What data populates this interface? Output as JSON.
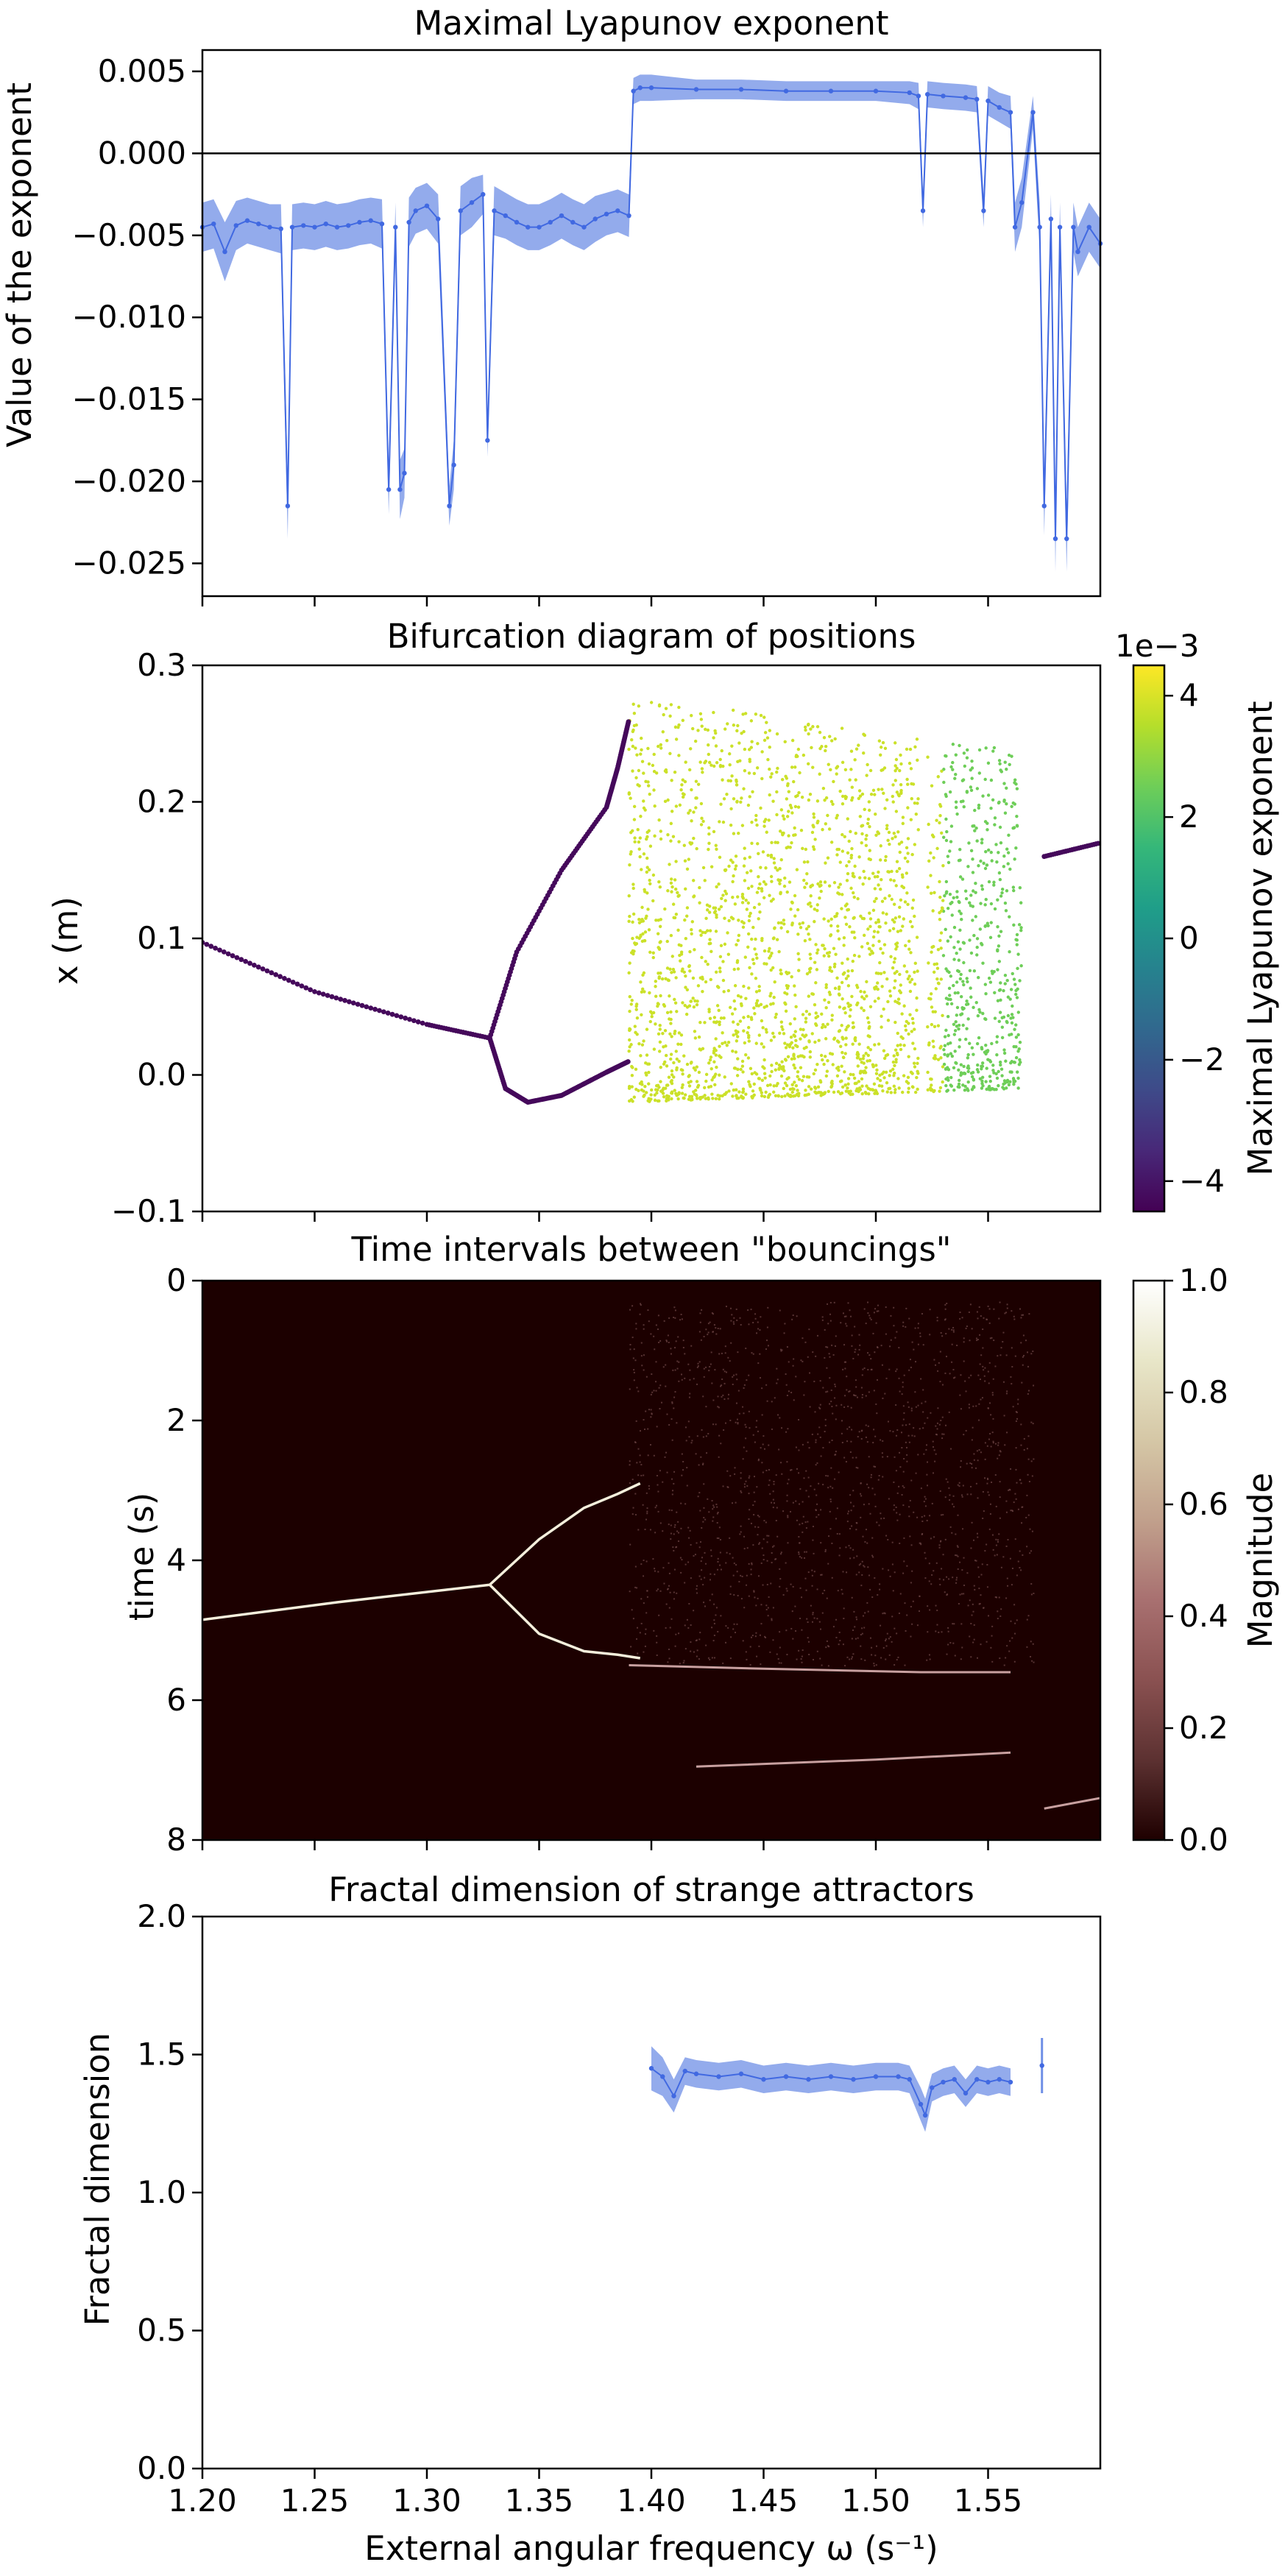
{
  "figure": {
    "panels": [
      "lyapunov",
      "bifurcation",
      "intervals",
      "fractal"
    ]
  },
  "chart_data": [
    {
      "id": "lyapunov",
      "type": "line",
      "title": "Maximal Lyapunov exponent",
      "xlabel": "",
      "ylabel": "Value of the exponent",
      "xlim": [
        1.2,
        1.6
      ],
      "ylim": [
        -0.027,
        0.0063
      ],
      "yticks": [
        "0.005",
        "0.000",
        "−0.005",
        "−0.010",
        "−0.015",
        "−0.020",
        "−0.025"
      ],
      "yticks_values": [
        0.005,
        0.0,
        -0.005,
        -0.01,
        -0.015,
        -0.02,
        -0.025
      ],
      "reference_line": 0.0,
      "grid": false,
      "series_color": "#4169e1",
      "band_color": "#6f8fe6",
      "series": [
        {
          "x": [
            1.2,
            1.205,
            1.21,
            1.215,
            1.22,
            1.225,
            1.23,
            1.235,
            1.238,
            1.24,
            1.245,
            1.25,
            1.255,
            1.26,
            1.265,
            1.27,
            1.275,
            1.28,
            1.283,
            1.286,
            1.288,
            1.29,
            1.292,
            1.295,
            1.3,
            1.305,
            1.31,
            1.312,
            1.315,
            1.32,
            1.325,
            1.327,
            1.33,
            1.335,
            1.34,
            1.345,
            1.35,
            1.355,
            1.36,
            1.365,
            1.37,
            1.375,
            1.38,
            1.385,
            1.39,
            1.392,
            1.395,
            1.4,
            1.42,
            1.44,
            1.46,
            1.48,
            1.5,
            1.515,
            1.519,
            1.521,
            1.523,
            1.53,
            1.54,
            1.545,
            1.548,
            1.55,
            1.555,
            1.56,
            1.562,
            1.565,
            1.57,
            1.573,
            1.575,
            1.578,
            1.58,
            1.582,
            1.585,
            1.588,
            1.59,
            1.595,
            1.6
          ],
          "y": [
            -0.0045,
            -0.0043,
            -0.006,
            -0.0044,
            -0.0041,
            -0.0043,
            -0.0045,
            -0.0046,
            -0.0215,
            -0.0045,
            -0.0044,
            -0.0045,
            -0.0043,
            -0.0045,
            -0.0044,
            -0.0042,
            -0.0041,
            -0.0043,
            -0.0205,
            -0.0045,
            -0.0205,
            -0.0195,
            -0.0042,
            -0.0035,
            -0.0032,
            -0.004,
            -0.0215,
            -0.019,
            -0.0035,
            -0.003,
            -0.0025,
            -0.0175,
            -0.0035,
            -0.0038,
            -0.0042,
            -0.0045,
            -0.0045,
            -0.0042,
            -0.0038,
            -0.0042,
            -0.0045,
            -0.004,
            -0.0037,
            -0.0035,
            -0.0038,
            0.0038,
            0.004,
            0.004,
            0.0039,
            0.0039,
            0.0038,
            0.0038,
            0.0038,
            0.0037,
            0.0035,
            -0.0035,
            0.0036,
            0.0035,
            0.0034,
            0.0033,
            -0.0035,
            0.0032,
            0.0028,
            0.0025,
            -0.0045,
            -0.003,
            0.0025,
            -0.0045,
            -0.0215,
            -0.004,
            -0.0235,
            -0.0045,
            -0.0235,
            -0.0045,
            -0.006,
            -0.0045,
            -0.0055
          ],
          "err": [
            0.0015,
            0.0015,
            0.0018,
            0.0015,
            0.0014,
            0.0014,
            0.0014,
            0.0015,
            0.002,
            0.0014,
            0.0014,
            0.0014,
            0.0014,
            0.0014,
            0.0014,
            0.0014,
            0.0014,
            0.0015,
            0.0015,
            0.0015,
            0.0018,
            0.0015,
            0.0015,
            0.0014,
            0.0014,
            0.0015,
            0.0012,
            0.0015,
            0.0015,
            0.0015,
            0.0012,
            0.001,
            0.0015,
            0.0014,
            0.0014,
            0.0014,
            0.0014,
            0.0014,
            0.0014,
            0.0014,
            0.0014,
            0.0014,
            0.0013,
            0.0013,
            0.0013,
            0.0008,
            0.0008,
            0.0008,
            0.0006,
            0.0006,
            0.0006,
            0.0006,
            0.0006,
            0.0007,
            0.0008,
            0.001,
            0.0008,
            0.0008,
            0.0008,
            0.0008,
            0.001,
            0.0009,
            0.0009,
            0.001,
            0.0015,
            0.0015,
            0.001,
            0.0015,
            0.0018,
            0.0015,
            0.002,
            0.0015,
            0.002,
            0.0015,
            0.0015,
            0.0015,
            0.0015
          ]
        }
      ]
    },
    {
      "id": "bifurcation",
      "type": "scatter",
      "title": "Bifurcation diagram of positions",
      "xlabel": "",
      "ylabel": "x (m)",
      "xlim": [
        1.2,
        1.6
      ],
      "ylim": [
        -0.1,
        0.3
      ],
      "yticks": [
        "0.3",
        "0.2",
        "0.1",
        "0.0",
        "−0.1"
      ],
      "yticks_values": [
        0.3,
        0.2,
        0.1,
        0.0,
        -0.1
      ],
      "grid": false,
      "colorbar": {
        "label": "Maximal Lyapunov exponent",
        "offset_label": "1e−3",
        "ticks": [
          "4",
          "2",
          "0",
          "−2",
          "−4"
        ],
        "ticks_values": [
          4,
          2,
          0,
          -2,
          -4
        ],
        "range": [
          -4.5,
          4.5
        ],
        "colormap": "viridis",
        "colors": [
          "#440154",
          "#482878",
          "#3e4a89",
          "#31688e",
          "#26828e",
          "#1f9e89",
          "#35b779",
          "#6ece58",
          "#b5de2b",
          "#fde725"
        ]
      },
      "branches": [
        {
          "label": "period-1 branch",
          "x": [
            1.2,
            1.25,
            1.3,
            1.328
          ],
          "y": [
            0.097,
            0.061,
            0.037,
            0.027
          ]
        },
        {
          "label": "upper period-2 branch",
          "x": [
            1.328,
            1.34,
            1.36,
            1.38,
            1.385,
            1.39
          ],
          "y": [
            0.027,
            0.09,
            0.15,
            0.196,
            0.225,
            0.26
          ]
        },
        {
          "label": "lower period-2 branch",
          "x": [
            1.328,
            1.335,
            1.345,
            1.36,
            1.38,
            1.39
          ],
          "y": [
            0.027,
            -0.01,
            -0.02,
            -0.015,
            0.002,
            0.01
          ]
        },
        {
          "label": "right window branches",
          "x": [
            1.575,
            1.6
          ],
          "y": [
            0.16,
            0.17
          ]
        }
      ],
      "chaotic_region": {
        "x_range": [
          1.39,
          1.565
        ],
        "upper_edge": [
          [
            1.39,
            0.275
          ],
          [
            1.45,
            0.265
          ],
          [
            1.5,
            0.25
          ],
          [
            1.545,
            0.24
          ],
          [
            1.565,
            0.24
          ]
        ],
        "lower_edge": [
          [
            1.39,
            -0.02
          ],
          [
            1.565,
            -0.01
          ]
        ],
        "lyapunov_level": 3.8
      }
    },
    {
      "id": "intervals",
      "type": "heatmap",
      "title": "Time intervals between \"bouncings\"",
      "xlabel": "",
      "ylabel": "time (s)",
      "xlim": [
        1.2,
        1.6
      ],
      "ylim": [
        8,
        0
      ],
      "yticks": [
        "0",
        "2",
        "4",
        "6",
        "8"
      ],
      "yticks_values": [
        0,
        2,
        4,
        6,
        8
      ],
      "grid": false,
      "background_color": "#1c0000",
      "colorbar": {
        "label": "Magnitude",
        "ticks": [
          "1.0",
          "0.8",
          "0.6",
          "0.4",
          "0.2",
          "0.0"
        ],
        "ticks_values": [
          1.0,
          0.8,
          0.6,
          0.4,
          0.2,
          0.0
        ],
        "range": [
          0.0,
          1.0
        ],
        "colormap": "pink",
        "colors": [
          "#1e0000",
          "#5c3131",
          "#8a5151",
          "#a87070",
          "#c1a08c",
          "#d5c7a6",
          "#e8e6c8",
          "#ffffff"
        ]
      },
      "curves": [
        {
          "label": "single interval",
          "x": [
            1.2,
            1.26,
            1.328
          ],
          "t": [
            4.85,
            4.6,
            4.35
          ]
        },
        {
          "label": "split upper",
          "x": [
            1.328,
            1.35,
            1.37,
            1.385,
            1.395
          ],
          "t": [
            4.35,
            3.7,
            3.25,
            3.05,
            2.9
          ]
        },
        {
          "label": "split lower",
          "x": [
            1.328,
            1.35,
            1.37,
            1.385,
            1.395
          ],
          "t": [
            4.35,
            5.05,
            5.3,
            5.35,
            5.4
          ]
        },
        {
          "label": "long interval band",
          "x": [
            1.39,
            1.45,
            1.52,
            1.56
          ],
          "t": [
            5.5,
            5.55,
            5.6,
            5.6
          ]
        },
        {
          "label": "lower band",
          "x": [
            1.42,
            1.5,
            1.56
          ],
          "t": [
            6.95,
            6.85,
            6.75
          ]
        },
        {
          "label": "right window",
          "x": [
            1.575,
            1.6
          ],
          "t": [
            7.55,
            7.4
          ]
        }
      ]
    },
    {
      "id": "fractal",
      "type": "line",
      "title": "Fractal dimension of strange attractors",
      "xlabel": "External angular frequency ω (s⁻¹)",
      "ylabel": "Fractal dimension",
      "xlim": [
        1.2,
        1.6
      ],
      "ylim": [
        0.0,
        2.0
      ],
      "xticks": [
        "1.20",
        "1.25",
        "1.30",
        "1.35",
        "1.40",
        "1.45",
        "1.50",
        "1.55"
      ],
      "xticks_values": [
        1.2,
        1.25,
        1.3,
        1.35,
        1.4,
        1.45,
        1.5,
        1.55
      ],
      "yticks": [
        "2.0",
        "1.5",
        "1.0",
        "0.5",
        "0.0"
      ],
      "yticks_values": [
        2.0,
        1.5,
        1.0,
        0.5,
        0.0
      ],
      "grid": false,
      "series_color": "#4169e1",
      "band_color": "#6f8fe6",
      "series": [
        {
          "x": [
            1.4,
            1.405,
            1.41,
            1.415,
            1.42,
            1.43,
            1.44,
            1.45,
            1.46,
            1.47,
            1.48,
            1.49,
            1.5,
            1.51,
            1.515,
            1.52,
            1.522,
            1.525,
            1.53,
            1.535,
            1.54,
            1.545,
            1.55,
            1.555,
            1.56
          ],
          "y": [
            1.45,
            1.42,
            1.35,
            1.44,
            1.43,
            1.42,
            1.43,
            1.41,
            1.42,
            1.41,
            1.42,
            1.41,
            1.42,
            1.42,
            1.41,
            1.32,
            1.28,
            1.38,
            1.4,
            1.41,
            1.36,
            1.41,
            1.4,
            1.41,
            1.4
          ],
          "err": [
            0.08,
            0.07,
            0.06,
            0.05,
            0.05,
            0.05,
            0.05,
            0.05,
            0.05,
            0.05,
            0.05,
            0.05,
            0.05,
            0.05,
            0.05,
            0.06,
            0.06,
            0.05,
            0.05,
            0.05,
            0.05,
            0.05,
            0.05,
            0.05,
            0.05
          ]
        },
        {
          "x": [
            1.574
          ],
          "y": [
            1.46
          ],
          "err": [
            0.1
          ]
        }
      ]
    }
  ]
}
